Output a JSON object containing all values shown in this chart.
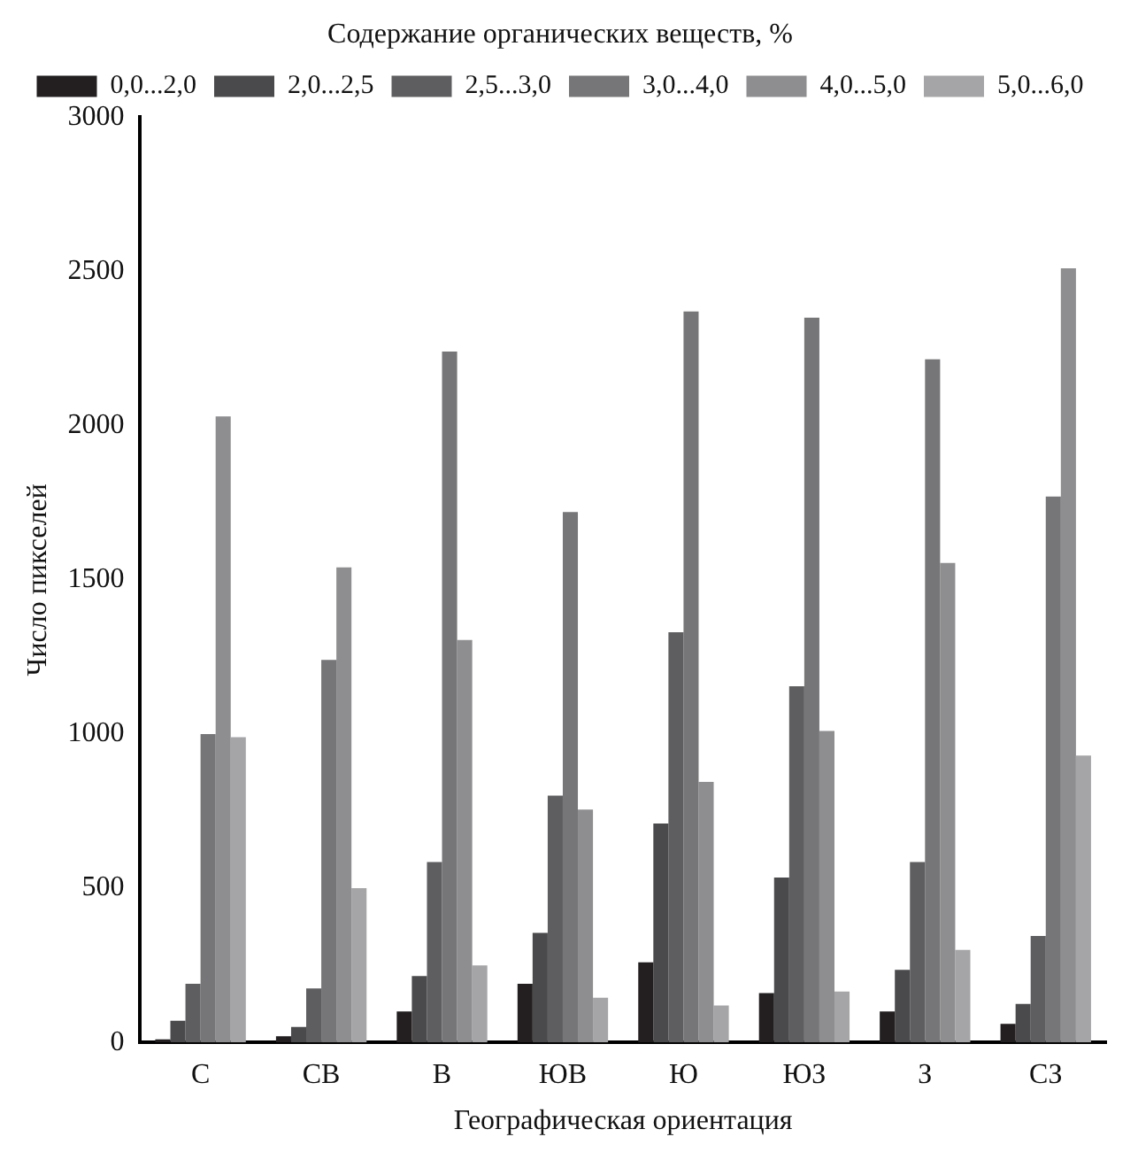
{
  "chart_data": {
    "type": "bar",
    "xlabel": "Географическая ориентация",
    "ylabel": "Число пикселей",
    "legend_title": "Содержание органических веществ, %",
    "categories": [
      "С",
      "СВ",
      "В",
      "ЮВ",
      "Ю",
      "ЮЗ",
      "З",
      "СЗ"
    ],
    "series": [
      {
        "name": "0,0...2,0",
        "color": "#231f20",
        "values": [
          10,
          20,
          100,
          190,
          260,
          160,
          100,
          60
        ]
      },
      {
        "name": "2,0...2,5",
        "color": "#4a4a4c",
        "values": [
          70,
          50,
          215,
          355,
          710,
          535,
          235,
          125
        ]
      },
      {
        "name": "2,5...3,0",
        "color": "#5e5e60",
        "values": [
          190,
          175,
          585,
          800,
          1330,
          1155,
          585,
          345
        ]
      },
      {
        "name": "3,0...4,0",
        "color": "#767678",
        "values": [
          1000,
          1240,
          2240,
          1720,
          2370,
          2350,
          2215,
          1770
        ]
      },
      {
        "name": "4,0...5,0",
        "color": "#8e8e90",
        "values": [
          2030,
          1540,
          1305,
          755,
          845,
          1010,
          1555,
          2510
        ]
      },
      {
        "name": "5,0...6,0",
        "color": "#a5a5a7",
        "values": [
          990,
          500,
          250,
          145,
          120,
          165,
          300,
          930
        ]
      }
    ],
    "ylim": [
      0,
      3000
    ],
    "yticks": [
      0,
      500,
      1000,
      1500,
      2000,
      2500,
      3000
    ],
    "grid": false,
    "legend": "top"
  }
}
